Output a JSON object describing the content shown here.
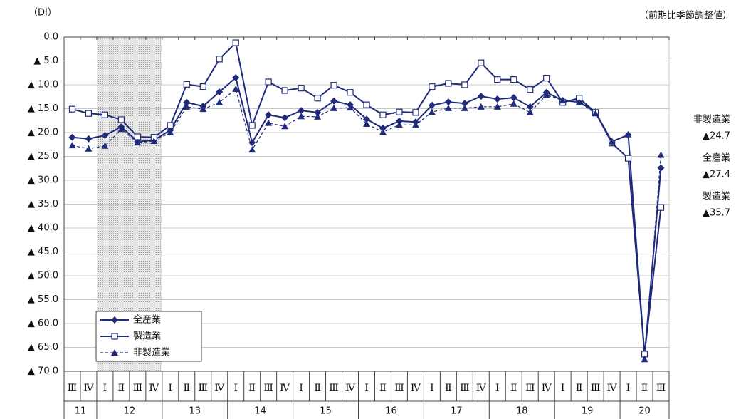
{
  "chart_data": {
    "type": "line",
    "title": "（DI）",
    "subtitle": "（前期比季節調整値）",
    "categories": [
      "Ⅲ",
      "Ⅳ",
      "Ⅰ",
      "Ⅱ",
      "Ⅲ",
      "Ⅳ",
      "Ⅰ",
      "Ⅱ",
      "Ⅲ",
      "Ⅳ",
      "Ⅰ",
      "Ⅱ",
      "Ⅲ",
      "Ⅳ",
      "Ⅰ",
      "Ⅱ",
      "Ⅲ",
      "Ⅳ",
      "Ⅰ",
      "Ⅱ",
      "Ⅲ",
      "Ⅳ",
      "Ⅰ",
      "Ⅱ",
      "Ⅲ",
      "Ⅳ",
      "Ⅰ",
      "Ⅱ",
      "Ⅲ",
      "Ⅳ",
      "Ⅰ",
      "Ⅱ",
      "Ⅲ",
      "Ⅳ",
      "Ⅰ",
      "Ⅱ",
      "Ⅲ"
    ],
    "year_labels": [
      "11",
      "12",
      "13",
      "14",
      "15",
      "16",
      "17",
      "18",
      "19",
      "20"
    ],
    "shaded_year": "12",
    "series": [
      {
        "name": "全産業",
        "color": "#1f2a7a",
        "marker": "diamond",
        "dash": false,
        "values": [
          -21.0,
          -21.3,
          -20.6,
          -18.8,
          -21.9,
          -21.6,
          -19.5,
          -13.7,
          -14.5,
          -11.5,
          -8.5,
          -22.1,
          -16.3,
          -16.9,
          -15.4,
          -15.8,
          -13.4,
          -14.2,
          -17.2,
          -19.1,
          -17.6,
          -17.8,
          -14.3,
          -13.6,
          -13.9,
          -12.4,
          -13.0,
          -12.7,
          -14.6,
          -11.6,
          -13.3,
          -13.6,
          -15.7,
          -21.9,
          -20.5,
          -66.7,
          -27.4
        ]
      },
      {
        "name": "製造業",
        "color": "#1f2a7a",
        "marker": "square",
        "dash": false,
        "values": [
          -15.1,
          -16.0,
          -16.3,
          -17.3,
          -20.9,
          -21.0,
          -18.5,
          -9.9,
          -10.4,
          -4.6,
          -1.2,
          -18.5,
          -9.4,
          -11.2,
          -10.7,
          -12.8,
          -10.1,
          -11.6,
          -14.2,
          -16.3,
          -15.7,
          -15.8,
          -10.4,
          -9.7,
          -10.0,
          -5.4,
          -8.9,
          -8.9,
          -11.0,
          -8.6,
          -13.7,
          -12.8,
          -15.8,
          -22.2,
          -25.4,
          -66.4,
          -35.7
        ]
      },
      {
        "name": "非製造業",
        "color": "#1f2a7a",
        "marker": "triangle",
        "dash": true,
        "values": [
          -22.7,
          -23.4,
          -22.8,
          -19.3,
          -22.1,
          -21.8,
          -20.0,
          -14.6,
          -15.1,
          -13.7,
          -10.9,
          -23.6,
          -18.0,
          -18.7,
          -16.6,
          -16.7,
          -14.9,
          -14.8,
          -18.2,
          -19.9,
          -18.4,
          -18.4,
          -15.7,
          -14.9,
          -14.9,
          -14.6,
          -14.6,
          -14.0,
          -15.8,
          -12.1,
          -13.3,
          -13.7,
          -16.0,
          -21.9,
          -20.4,
          -67.5,
          -24.7
        ]
      }
    ],
    "annotations": [
      {
        "name": "非製造業",
        "label": "▲24.7"
      },
      {
        "name": "全産業",
        "label": "▲27.4"
      },
      {
        "name": "製造業",
        "label": "▲35.7"
      }
    ],
    "ylim": [
      -70,
      0
    ],
    "yticks": [
      {
        "value": 0,
        "label": "0.0"
      },
      {
        "value": -5,
        "label": "▲ 5.0"
      },
      {
        "value": -10,
        "label": "▲ 10.0"
      },
      {
        "value": -15,
        "label": "▲ 15.0"
      },
      {
        "value": -20,
        "label": "▲ 20.0"
      },
      {
        "value": -25,
        "label": "▲ 25.0"
      },
      {
        "value": -30,
        "label": "▲ 30.0"
      },
      {
        "value": -35,
        "label": "▲ 35.0"
      },
      {
        "value": -40,
        "label": "▲ 40.0"
      },
      {
        "value": -45,
        "label": "▲ 45.0"
      },
      {
        "value": -50,
        "label": "▲ 50.0"
      },
      {
        "value": -55,
        "label": "▲ 55.0"
      },
      {
        "value": -60,
        "label": "▲ 60.0"
      },
      {
        "value": -65,
        "label": "▲ 65.0"
      },
      {
        "value": -70,
        "label": "▲ 70.0"
      }
    ],
    "grid": true,
    "legend": "lower-left"
  }
}
